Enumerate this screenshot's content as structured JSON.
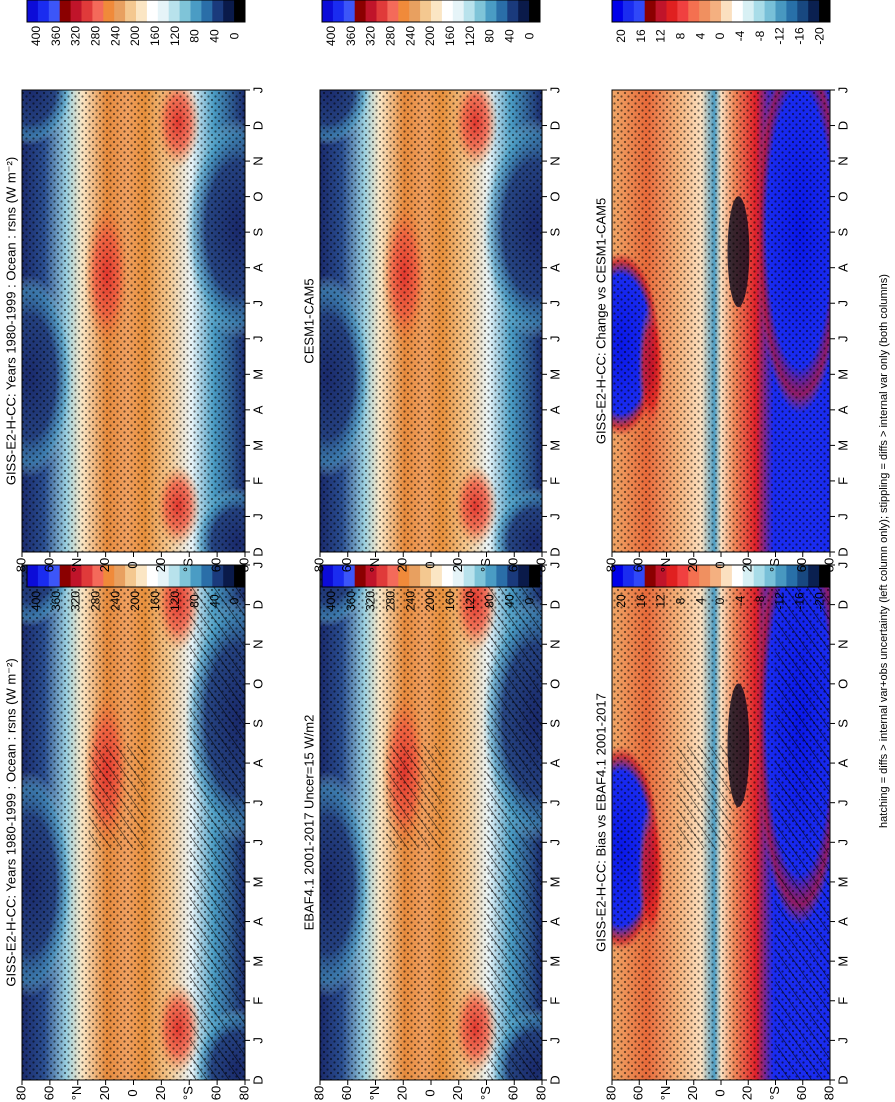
{
  "figure": {
    "footnote": "hatching = diffs > internal var+obs uncertainty (left column only); stippling = diffs > internal var only (both columns)"
  },
  "colors": {
    "abs_scale": [
      "#0c0cd8",
      "#1a2cf0",
      "#3c56f8",
      "#8b0000",
      "#c0142a",
      "#e03a3a",
      "#f46a5a",
      "#f08a3a",
      "#e8a060",
      "#f4c890",
      "#fbe6c4",
      "#ffffff",
      "#e6f4f8",
      "#b8e2ec",
      "#7fc4d8",
      "#4a9cc4",
      "#2a6ea8",
      "#1a3a7c",
      "#0a1a4a",
      "#000000"
    ],
    "diff_scale": [
      "#0000e8",
      "#1a2cf0",
      "#3048f8",
      "#8b0000",
      "#c0142a",
      "#e02020",
      "#f04040",
      "#f47050",
      "#f09060",
      "#f4b080",
      "#fbe0c0",
      "#ffffff",
      "#d8f0f4",
      "#a8dce8",
      "#78c0d8",
      "#4898c0",
      "#2870a8",
      "#184880",
      "#0a2050",
      "#000000"
    ]
  },
  "chart_data": [
    {
      "type": "heatmap",
      "panel": "top-left",
      "title": "GISS-E2-H-CC: Years 1980-1999 : Ocean : rsns (W m⁻²)",
      "x_ticks": [
        "D",
        "J",
        "F",
        "M",
        "A",
        "M",
        "J",
        "J",
        "A",
        "S",
        "O",
        "N",
        "D",
        "J"
      ],
      "y_ticks": [
        "80",
        "60",
        "°N",
        "20",
        "0",
        "20",
        "°S",
        "60",
        "80"
      ],
      "colorbar_ticks": [
        "400",
        "360",
        "320",
        "280",
        "240",
        "200",
        "160",
        "120",
        "80",
        "40",
        "0"
      ],
      "stippling": true,
      "hatching": true
    },
    {
      "type": "heatmap",
      "panel": "top-right",
      "title": "GISS-E2-H-CC: Years 1980-1999 : Ocean : rsns (W m⁻²)",
      "x_ticks": [
        "D",
        "J",
        "F",
        "M",
        "A",
        "M",
        "J",
        "J",
        "A",
        "S",
        "O",
        "N",
        "D",
        "J"
      ],
      "y_ticks": [
        "80",
        "60",
        "°N",
        "20",
        "0",
        "20",
        "°S",
        "60",
        "80"
      ],
      "colorbar_ticks": [
        "400",
        "360",
        "320",
        "280",
        "240",
        "200",
        "160",
        "120",
        "80",
        "40",
        "0"
      ],
      "stippling": true,
      "hatching": false
    },
    {
      "type": "heatmap",
      "panel": "middle-left",
      "title": "EBAF4.1 2001-2017 Uncer=15 W/m2",
      "x_ticks": [
        "D",
        "J",
        "F",
        "M",
        "A",
        "M",
        "J",
        "J",
        "A",
        "S",
        "O",
        "N",
        "D",
        "J"
      ],
      "y_ticks": [
        "80",
        "60",
        "°N",
        "20",
        "0",
        "20",
        "°S",
        "60",
        "80"
      ],
      "colorbar_ticks": [
        "400",
        "360",
        "320",
        "280",
        "240",
        "200",
        "160",
        "120",
        "80",
        "40",
        "0"
      ],
      "stippling": true,
      "hatching": true
    },
    {
      "type": "heatmap",
      "panel": "middle-right",
      "title": "CESM1-CAM5",
      "x_ticks": [
        "D",
        "J",
        "F",
        "M",
        "A",
        "M",
        "J",
        "J",
        "A",
        "S",
        "O",
        "N",
        "D",
        "J"
      ],
      "y_ticks": [
        "80",
        "60",
        "°N",
        "20",
        "0",
        "20",
        "°S",
        "60",
        "80"
      ],
      "colorbar_ticks": [
        "400",
        "360",
        "320",
        "280",
        "240",
        "200",
        "160",
        "120",
        "80",
        "40",
        "0"
      ],
      "stippling": true,
      "hatching": false
    },
    {
      "type": "heatmap",
      "panel": "bottom-left",
      "title": "GISS-E2-H-CC: Bias vs EBAF4.1 2001-2017",
      "x_ticks": [
        "D",
        "J",
        "F",
        "M",
        "A",
        "M",
        "J",
        "J",
        "A",
        "S",
        "O",
        "N",
        "D",
        "J"
      ],
      "y_ticks": [
        "80",
        "60",
        "°N",
        "20",
        "0",
        "20",
        "°S",
        "60",
        "80"
      ],
      "colorbar_ticks": [
        "20",
        "16",
        "12",
        "8",
        "4",
        "0",
        "-4",
        "-8",
        "-12",
        "-16",
        "-20"
      ],
      "stippling": true,
      "hatching": true
    },
    {
      "type": "heatmap",
      "panel": "bottom-right",
      "title": "GISS-E2-H-CC: Change vs CESM1-CAM5",
      "x_ticks": [
        "D",
        "J",
        "F",
        "M",
        "A",
        "M",
        "J",
        "J",
        "A",
        "S",
        "O",
        "N",
        "D",
        "J"
      ],
      "y_ticks": [
        "80",
        "60",
        "°N",
        "20",
        "0",
        "20",
        "°S",
        "60",
        "80"
      ],
      "colorbar_ticks": [
        "20",
        "16",
        "12",
        "8",
        "4",
        "0",
        "-4",
        "-8",
        "-12",
        "-16",
        "-20"
      ],
      "stippling": true,
      "hatching": false
    }
  ]
}
